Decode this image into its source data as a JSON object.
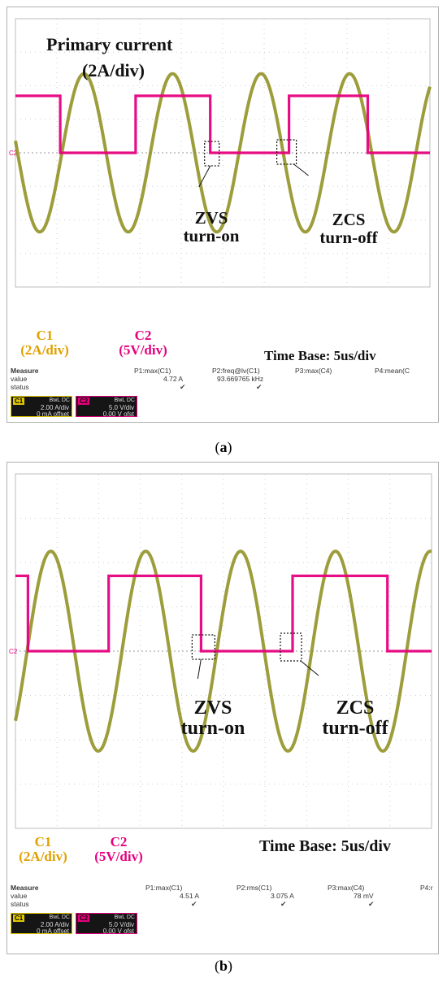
{
  "chart_data": [
    {
      "type": "line",
      "panel": "a",
      "title": "Primary current",
      "title_unit": "(2A/div)",
      "time_base": "Time Base: 5us/div",
      "channel_labels": [
        {
          "name": "C1",
          "scale": "(2A/div)",
          "color": "#e0a000"
        },
        {
          "name": "C2",
          "scale": "(5V/div)",
          "color": "#e6007e"
        }
      ],
      "ground_marker": "C2",
      "annotations": [
        {
          "line1": "ZVS",
          "line2": "turn-on"
        },
        {
          "line1": "ZCS",
          "line2": "turn-off"
        }
      ],
      "x_unit": "us",
      "xlim": [
        0,
        50
      ],
      "ylim_divisions": [
        -4,
        4
      ],
      "grid": true,
      "series": [
        {
          "name": "C1",
          "unit": "A",
          "color": "#8c8c1a",
          "amplitude": 4.72,
          "period_us": 10.68,
          "zero_cross_rise_us": 5.6,
          "x": [
            0,
            1,
            2,
            3,
            4,
            5,
            6,
            7,
            8,
            9,
            10,
            11,
            12,
            13,
            14,
            15,
            16,
            17,
            18,
            19,
            20,
            21,
            22,
            23,
            24,
            25,
            26,
            27,
            28,
            29,
            30,
            31,
            32,
            33,
            34,
            35,
            36,
            37,
            38,
            39,
            40,
            41,
            42,
            43,
            44,
            45,
            46,
            47,
            48,
            49,
            50
          ],
          "y": [
            -4.13,
            -4.72,
            -4.33,
            -3.03,
            -1.02,
            1.21,
            3.16,
            4.43,
            4.7,
            3.97,
            2.37,
            0.27,
            -1.85,
            -3.58,
            -4.59,
            -4.63,
            -3.68,
            -2.02,
            0.12,
            2.23,
            3.85,
            4.68,
            4.51,
            3.38,
            1.6,
            -0.57,
            -2.58,
            -4.07,
            -4.72,
            -4.35,
            -3.07,
            -1.07,
            1.16,
            3.12,
            4.41,
            4.71,
            3.99,
            2.42,
            0.32,
            -1.81,
            -3.55,
            -4.58,
            -4.64,
            -3.71,
            -2.06,
            0.07,
            2.18,
            3.82,
            4.67,
            4.53,
            3.42
          ]
        },
        {
          "name": "C2",
          "unit": "V",
          "color": "#e6007e",
          "x": [
            0,
            5.4,
            5.4,
            14.5,
            14.5,
            23.5,
            23.5,
            33.0,
            33.0,
            42.5,
            42.5,
            50
          ],
          "y": [
            8.5,
            8.5,
            0,
            0,
            8.5,
            8.5,
            0,
            0,
            8.5,
            8.5,
            0,
            0
          ]
        }
      ],
      "measure": {
        "title": "Measure",
        "row_labels": [
          "value",
          "status"
        ],
        "params": [
          {
            "label": "P1:max(C1)",
            "value": "4.72 A",
            "status": "✔"
          },
          {
            "label": "P2:freq@lv(C1)",
            "value": "93.669765 kHz",
            "status": "✔"
          },
          {
            "label": "P3:max(C4)",
            "value": "",
            "status": ""
          },
          {
            "label": "P4:mean(C",
            "value": "",
            "status": ""
          }
        ]
      },
      "channels": [
        {
          "tag": "C1",
          "bw": "BwL DC",
          "scale": "2.00 A/div",
          "offset": "0 mA offset",
          "color": "#e0c800"
        },
        {
          "tag": "C2",
          "bw": "BwL DC",
          "scale": "5.0 V/div",
          "offset": "0.00 V ofst",
          "color": "#e6007e"
        }
      ],
      "caption_letter": "a"
    },
    {
      "type": "line",
      "panel": "b",
      "time_base": "Time Base: 5us/div",
      "channel_labels": [
        {
          "name": "C1",
          "scale": "(2A/div)",
          "color": "#e0a000"
        },
        {
          "name": "C2",
          "scale": "(5V/div)",
          "color": "#e6007e"
        }
      ],
      "ground_marker": "C2",
      "annotations": [
        {
          "line1": "ZVS",
          "line2": "turn-on"
        },
        {
          "line1": "ZCS",
          "line2": "turn-off"
        }
      ],
      "x_unit": "us",
      "xlim": [
        0,
        50
      ],
      "ylim_divisions": [
        -4,
        4
      ],
      "grid": true,
      "series": [
        {
          "name": "C1",
          "unit": "A",
          "color": "#8c8c1a",
          "amplitude": 4.51,
          "period_us": 11.4,
          "zero_cross_rise_us": 1.4,
          "x": [
            0,
            1,
            2,
            3,
            4,
            5,
            6,
            7,
            8,
            9,
            10,
            11,
            12,
            13,
            14,
            15,
            16,
            17,
            18,
            19,
            20,
            21,
            22,
            23,
            24,
            25,
            26,
            27,
            28,
            29,
            30,
            31,
            32,
            33,
            34,
            35,
            36,
            37,
            38,
            39,
            40,
            41,
            42,
            43,
            44,
            45,
            46,
            47,
            48,
            49,
            50
          ],
          "y": [
            -3.26,
            -1.09,
            1.18,
            3.06,
            4.23,
            4.48,
            3.73,
            2.11,
            0,
            -2.11,
            -3.73,
            -4.48,
            -4.23,
            -3.06,
            -1.18,
            1.09,
            3.06,
            4.23,
            4.48,
            3.73,
            2.11,
            -0.12,
            -2.22,
            -3.8,
            -4.5,
            -4.18,
            -2.97,
            -1.06,
            1.21,
            3.13,
            4.31,
            4.47,
            3.66,
            2.0,
            -0.25,
            -2.33,
            -3.88,
            -4.51,
            -4.13,
            -2.88,
            -0.95,
            1.33,
            3.21,
            4.35,
            4.43,
            3.58,
            1.88,
            -0.37,
            -2.44,
            -3.95,
            -4.51
          ]
        },
        {
          "name": "C2",
          "unit": "V",
          "color": "#e6007e",
          "x": [
            0,
            1.5,
            1.5,
            11.2,
            11.2,
            22.3,
            22.3,
            33.3,
            33.3,
            44.7,
            44.7,
            50
          ],
          "y": [
            8.5,
            8.5,
            0,
            0,
            8.5,
            8.5,
            0,
            0,
            8.5,
            8.5,
            0,
            0
          ]
        }
      ],
      "measure": {
        "title": "Measure",
        "row_labels": [
          "value",
          "status"
        ],
        "params": [
          {
            "label": "P1:max(C1)",
            "value": "4.51 A",
            "status": "✔"
          },
          {
            "label": "P2:rms(C1)",
            "value": "3.075 A",
            "status": "✔"
          },
          {
            "label": "P3:max(C4)",
            "value": "78 mV",
            "status": "✔"
          },
          {
            "label": "P4:r",
            "value": "",
            "status": ""
          }
        ]
      },
      "channels": [
        {
          "tag": "C1",
          "bw": "BwL DC",
          "scale": "2.00 A/div",
          "offset": "0 mA offset",
          "color": "#e0c800"
        },
        {
          "tag": "C2",
          "bw": "BwL DC",
          "scale": "5.0 V/div",
          "offset": "0.00 V ofst",
          "color": "#e6007e"
        }
      ],
      "caption_letter": "b"
    }
  ]
}
